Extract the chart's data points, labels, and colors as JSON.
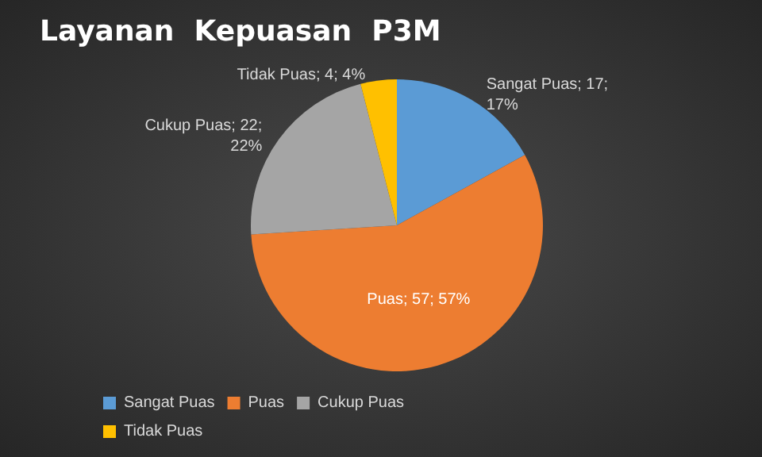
{
  "chart_data": {
    "type": "pie",
    "title": "Layanan  Kepuasan  P3M",
    "categories": [
      "Sangat Puas",
      "Puas",
      "Cukup Puas",
      "Tidak Puas"
    ],
    "values": [
      17,
      57,
      22,
      4
    ],
    "colors": [
      "#5b9bd5",
      "#ed7d31",
      "#a5a5a5",
      "#ffc000"
    ],
    "value_labels": [
      "Sangat Puas; 17;\n17%",
      "Puas; 57; 57%",
      "Cukup Puas; 22;\n22%",
      "Tidak Puas; 4; 4%"
    ],
    "legend": "bottom"
  }
}
